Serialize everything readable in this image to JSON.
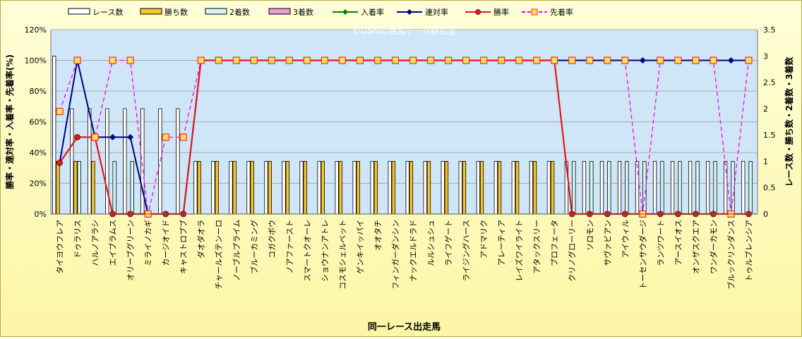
{
  "chart_data": {
    "type": "bar+line",
    "watermark": "©Ganiの競馬データ研究室",
    "xlabel": "同一レース出走馬",
    "ylabel_left": "勝率・連対率・入着率・先着率(%)",
    "ylabel_right": "レース数・勝ち数・2着数・3着数",
    "ylim_left": [
      0,
      120
    ],
    "ylim_right": [
      0,
      3.5
    ],
    "left_ticks": [
      "0%",
      "20%",
      "40%",
      "60%",
      "80%",
      "100%",
      "120%"
    ],
    "right_ticks": [
      "0",
      "0.5",
      "1",
      "1.5",
      "2",
      "2.5",
      "3",
      "3.5"
    ],
    "legend": {
      "races": "レース数",
      "wins": "勝ち数",
      "second": "2着数",
      "third": "3着数",
      "place_rate": "入着率",
      "quinella_rate": "連対率",
      "win_rate": "勝率",
      "ahead_rate": "先着率"
    },
    "categories": [
      "タイヨウフレア",
      "ドゥラリス",
      "ハルノアラシ",
      "エイブラムス",
      "オリーブグリーン",
      "ミライノカギ",
      "カージオイド",
      "キャストロプブ",
      "ダオダオラ",
      "チャールズテンーロ",
      "ノーブルプライム",
      "ブルーカミング",
      "コガクボウ",
      "ノアファースト",
      "スマートクオーレ",
      "ショウナンアトレ",
      "コスモシェルベット",
      "ゲンキイッパイ",
      "オオタチ",
      "フィンガーダンシン",
      "ナックエルドラド",
      "ルルシュシュ",
      "ライフゲート",
      "ライジングハース",
      "アドマリク",
      "アレーティア",
      "レイズワイライト",
      "アタックスリー",
      "プロフェータ",
      "クリノグローリー",
      "ソロモン",
      "サヴァビアン",
      "アイウィル",
      "トーセンサウダージ",
      "ランツワート",
      "アースイオス",
      "オンザスクエア",
      "ワンダーカモン",
      "ブルックリンダンス",
      "トゥルブレンシア"
    ],
    "series": {
      "races": [
        3,
        2,
        2,
        2,
        2,
        2,
        2,
        2,
        1,
        1,
        1,
        1,
        1,
        1,
        1,
        1,
        1,
        1,
        1,
        1,
        1,
        1,
        1,
        1,
        1,
        1,
        1,
        1,
        1,
        1,
        1,
        1,
        1,
        1,
        1,
        1,
        1,
        1,
        1,
        1
      ],
      "wins": [
        1,
        1,
        1,
        0,
        0,
        0,
        0,
        0,
        1,
        1,
        1,
        1,
        1,
        1,
        1,
        1,
        1,
        1,
        1,
        1,
        1,
        1,
        1,
        1,
        1,
        1,
        1,
        1,
        1,
        0,
        0,
        0,
        0,
        0,
        0,
        0,
        0,
        0,
        0,
        0
      ],
      "second": [
        0,
        1,
        0,
        1,
        1,
        0,
        0,
        0,
        0,
        0,
        0,
        0,
        0,
        0,
        0,
        0,
        0,
        0,
        0,
        0,
        0,
        0,
        0,
        0,
        0,
        0,
        0,
        0,
        0,
        1,
        1,
        1,
        1,
        1,
        1,
        1,
        1,
        1,
        1,
        1
      ],
      "third": [
        0,
        0,
        0,
        0,
        0,
        0,
        0,
        0,
        0,
        0,
        0,
        0,
        0,
        0,
        0,
        0,
        0,
        0,
        0,
        0,
        0,
        0,
        0,
        0,
        0,
        0,
        0,
        0,
        0,
        0,
        0,
        0,
        0,
        0,
        0,
        0,
        0,
        0,
        0,
        0
      ],
      "win_rate": [
        33.3,
        50,
        50,
        0,
        0,
        0,
        0,
        0,
        100,
        100,
        100,
        100,
        100,
        100,
        100,
        100,
        100,
        100,
        100,
        100,
        100,
        100,
        100,
        100,
        100,
        100,
        100,
        100,
        100,
        0,
        0,
        0,
        0,
        0,
        0,
        0,
        0,
        0,
        0,
        0
      ],
      "quinella_rate": [
        33.3,
        100,
        50,
        50,
        50,
        0,
        0,
        0,
        100,
        100,
        100,
        100,
        100,
        100,
        100,
        100,
        100,
        100,
        100,
        100,
        100,
        100,
        100,
        100,
        100,
        100,
        100,
        100,
        100,
        100,
        100,
        100,
        100,
        100,
        100,
        100,
        100,
        100,
        100,
        100
      ],
      "ahead_rate": [
        66.7,
        100,
        50,
        100,
        100,
        0,
        50,
        50,
        100,
        100,
        100,
        100,
        100,
        100,
        100,
        100,
        100,
        100,
        100,
        100,
        100,
        100,
        100,
        100,
        100,
        100,
        100,
        100,
        100,
        100,
        100,
        100,
        100,
        0,
        100,
        100,
        100,
        100,
        0,
        100
      ]
    },
    "colors": {
      "plot_bg": "#cfe6f8",
      "grid": "#a9a9a9",
      "races_fill": "#ffffff",
      "wins_fill": "#f7c62d",
      "second_fill": "#d7f7f7",
      "third_fill": "#ee9cd4",
      "place_rate": "#008000",
      "quinella_rate": "#000080",
      "win_rate": "#e0191e",
      "ahead_rate": "#ff00ff",
      "ahead_marker": "#ffe05a"
    }
  }
}
